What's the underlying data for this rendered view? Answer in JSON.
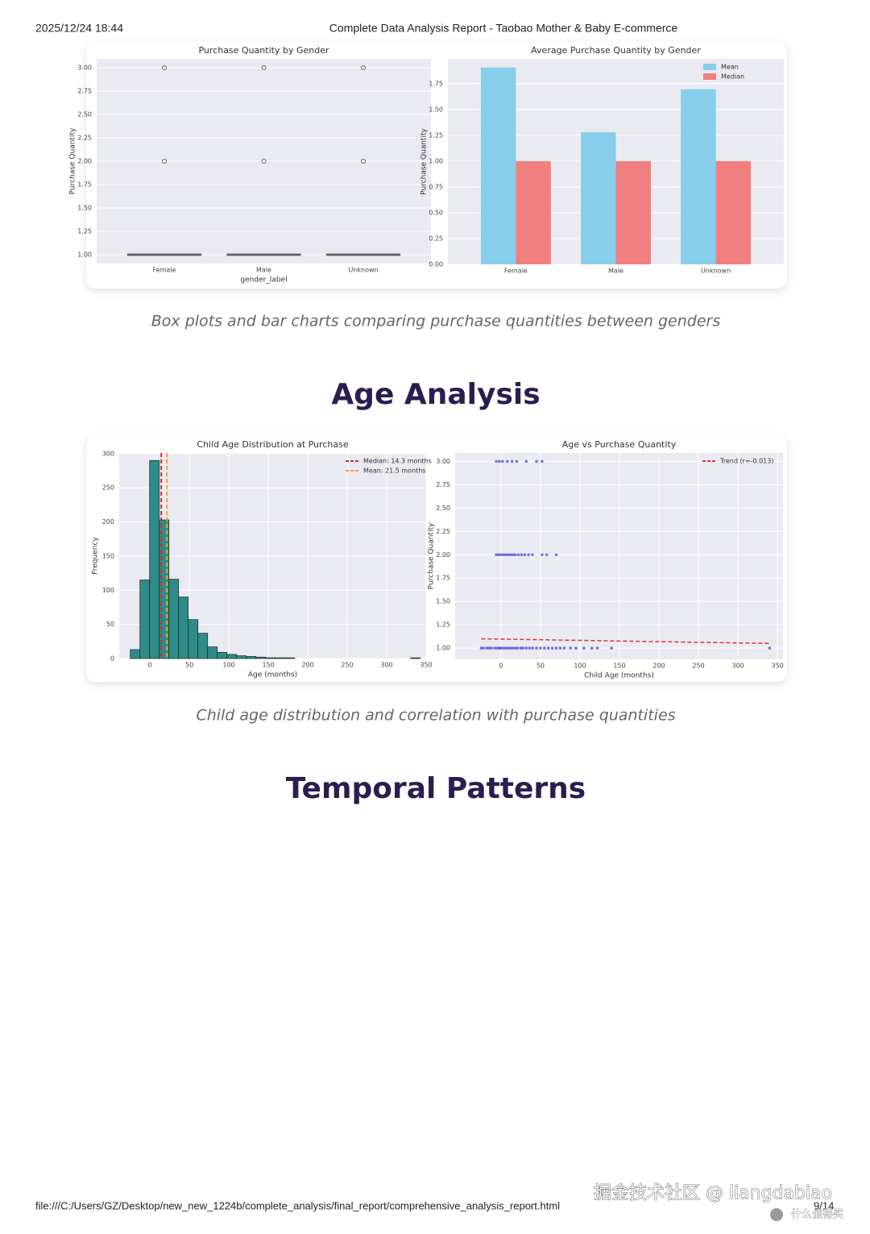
{
  "header": {
    "date": "2025/12/24 18:44",
    "title": "Complete Data Analysis Report - Taobao Mother & Baby E-commerce"
  },
  "chart_data": [
    {
      "type": "box",
      "title": "Purchase Quantity by Gender",
      "xlabel": "gender_label",
      "ylabel": "Purchase Quantity",
      "categories": [
        "Female",
        "Male",
        "Unknown"
      ],
      "boxes": [
        {
          "whislo": 1,
          "q1": 1,
          "median": 1,
          "q3": 1,
          "whishi": 1,
          "fliers": [
            2,
            3
          ]
        },
        {
          "whislo": 1,
          "q1": 1,
          "median": 1,
          "q3": 1,
          "whishi": 1,
          "fliers": [
            2,
            3
          ]
        },
        {
          "whislo": 1,
          "q1": 1,
          "median": 1,
          "q3": 1,
          "whishi": 1,
          "fliers": [
            2,
            3
          ]
        }
      ],
      "color": "#9a9a9a",
      "ylim": [
        0.905,
        3.095
      ],
      "yticks": [
        {
          "value": 1,
          "label": "1.00"
        },
        1.25,
        {
          "value": 1.5,
          "label": "1.50"
        },
        1.75,
        {
          "value": 2,
          "label": "2.00"
        },
        2.25,
        {
          "value": 2.5,
          "label": "2.50"
        },
        2.75,
        {
          "value": 3,
          "label": "3.00"
        }
      ],
      "grid": true
    },
    {
      "type": "bar",
      "title": "Average Purchase Quantity by Gender",
      "ylabel": "Purchase Quantity",
      "categories": [
        "Female",
        "Male",
        "Unknown"
      ],
      "series": [
        {
          "name": "Mean",
          "color": "#87ceeb",
          "values": [
            1.906,
            1.28,
            1.695
          ]
        },
        {
          "name": "Median",
          "color": "#f08080",
          "values": [
            1,
            1,
            1
          ]
        }
      ],
      "ylim": [
        0,
        1.99
      ],
      "yticks": [
        {
          "value": 0,
          "label": "0.00"
        },
        0.25,
        {
          "value": 0.5,
          "label": "0.50"
        },
        0.75,
        {
          "value": 1,
          "label": "1.00"
        },
        1.25,
        {
          "value": 1.5,
          "label": "1.50"
        },
        1.75
      ],
      "grid": true,
      "legend": "upper right"
    },
    {
      "type": "histogram",
      "title": "Child Age Distribution at Purchase",
      "xlabel": "Age (months)",
      "ylabel": "Frequency",
      "bins": [
        -25,
        -12.75,
        -0.5,
        11.75,
        24,
        36.25,
        48.5,
        60.75,
        73,
        85.25,
        97.5,
        109.75,
        122,
        134.25,
        146.5,
        158.75,
        171,
        183.25,
        195.5,
        207.75,
        220,
        232.25,
        244.5,
        256.75,
        269,
        281.25,
        293.5,
        305.75,
        318,
        330.25,
        342.5
      ],
      "values": [
        13,
        115,
        290,
        203,
        116,
        90,
        57,
        37,
        17,
        9,
        6,
        4,
        3,
        2,
        1,
        1,
        1,
        0,
        0,
        0,
        0,
        0,
        0,
        0,
        0,
        0,
        0,
        0,
        0,
        1
      ],
      "color": "#2e8b87",
      "lines": [
        {
          "name": "Median: 14.3 months",
          "value": 14.3,
          "color": "#d62728"
        },
        {
          "name": "Mean: 21.5 months",
          "value": 21.5,
          "color": "#ff9f1c"
        }
      ],
      "xlim": [
        -39,
        350
      ],
      "xticks": [
        0,
        50,
        100,
        150,
        200,
        250,
        300,
        350
      ],
      "ylim": [
        0,
        301
      ],
      "yticks": [
        0,
        50,
        100,
        150,
        200,
        250,
        300
      ],
      "grid": true,
      "legend": "upper right"
    },
    {
      "type": "scatter",
      "title": "Age vs Purchase Quantity",
      "xlabel": "Child Age (months)",
      "ylabel": "Purchase Quantity",
      "x": [
        -25,
        -22,
        -18,
        -15,
        -12,
        -8,
        -5,
        -2,
        0,
        3,
        6,
        9,
        12,
        15,
        18,
        21,
        25,
        28,
        32,
        36,
        40,
        45,
        50,
        55,
        60,
        65,
        70,
        75,
        80,
        88,
        95,
        105,
        115,
        122,
        140,
        340,
        -6,
        -3,
        0,
        3,
        6,
        9,
        12,
        15,
        18,
        22,
        26,
        30,
        35,
        40,
        52,
        58,
        70,
        -6,
        -2,
        2,
        8,
        14,
        20,
        32,
        45,
        52
      ],
      "values": [
        1,
        1,
        1,
        1,
        1,
        1,
        1,
        1,
        1,
        1,
        1,
        1,
        1,
        1,
        1,
        1,
        1,
        1,
        1,
        1,
        1,
        1,
        1,
        1,
        1,
        1,
        1,
        1,
        1,
        1,
        1,
        1,
        1,
        1,
        1,
        1,
        2,
        2,
        2,
        2,
        2,
        2,
        2,
        2,
        2,
        2,
        2,
        2,
        2,
        2,
        2,
        2,
        2,
        3,
        3,
        3,
        3,
        3,
        3,
        3,
        3,
        3
      ],
      "color": "#1f1fcc",
      "trend": {
        "name": "Trend (r=-0.013)",
        "color": "#e03030",
        "x": [
          -25,
          340
        ],
        "values": [
          1.1,
          1.05
        ]
      },
      "xlim": [
        -58,
        357
      ],
      "xticks": [
        0,
        50,
        100,
        150,
        200,
        250,
        300,
        350
      ],
      "ylim": [
        0.88,
        3.09
      ],
      "yticks": [
        {
          "value": 1,
          "label": "1.00"
        },
        1.25,
        {
          "value": 1.5,
          "label": "1.50"
        },
        1.75,
        {
          "value": 2,
          "label": "2.00"
        },
        2.25,
        {
          "value": 2.5,
          "label": "2.50"
        },
        2.75,
        {
          "value": 3,
          "label": "3.00"
        }
      ],
      "grid": true,
      "legend": "upper right"
    }
  ],
  "captions": [
    "Box plots and bar charts comparing purchase quantities between genders",
    "Child age distribution and correlation with purchase quantities"
  ],
  "headings": [
    "Age Analysis",
    "Temporal Patterns"
  ],
  "footer": {
    "url": "file:///C:/Users/GZ/Desktop/new_new_1224b/complete_analysis/final_report/comprehensive_analysis_report.html",
    "page": "9/14"
  },
  "watermark": {
    "text": "掘金技术社区 @ liangdabiao",
    "brand": "什么值得买"
  }
}
